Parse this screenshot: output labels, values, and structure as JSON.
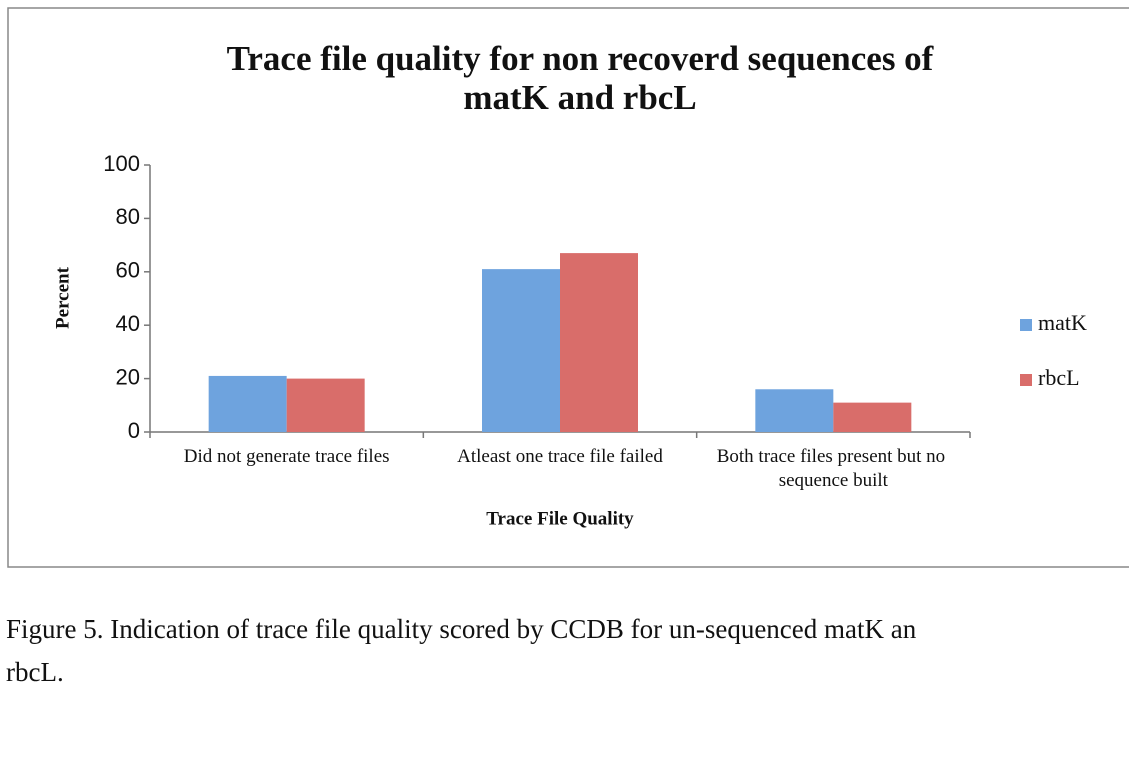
{
  "chart_data": {
    "type": "bar",
    "title": [
      "Trace file quality for non recoverd sequences of",
      "matK and rbcL"
    ],
    "x_label": "Trace File Quality",
    "y_label": "Percent",
    "categories": [
      "Did not generate trace files",
      "Atleast one trace file failed",
      "Both trace files present but no sequence built"
    ],
    "series": [
      {
        "name": "matK",
        "color": "#6ea3de",
        "values": [
          21,
          61,
          16
        ]
      },
      {
        "name": "rbcL",
        "color": "#d96d6a",
        "values": [
          20,
          67,
          11
        ]
      }
    ],
    "ylim": [
      0,
      100
    ],
    "yticks": [
      0,
      20,
      40,
      60,
      80,
      100
    ],
    "grid": false,
    "legend": "right"
  },
  "caption": [
    "Figure 5. Indication of trace file quality scored by CCDB for un-sequenced matK an",
    "rbcL."
  ]
}
